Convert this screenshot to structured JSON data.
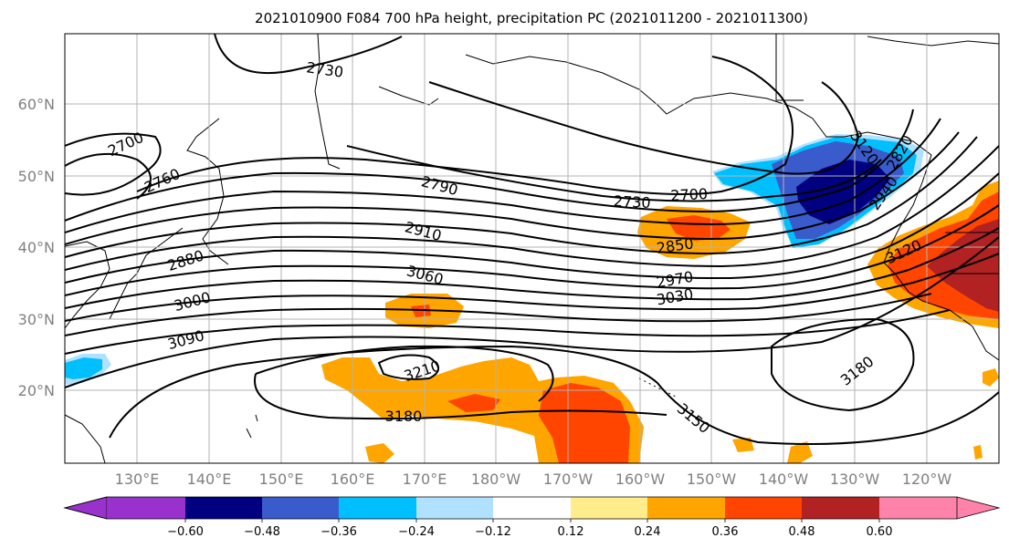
{
  "title": "2021010900 F084 700 hPa height, precipitation PC (2021011200 - 2021011300)",
  "lat_labels": [
    "60°N",
    "50°N",
    "40°N",
    "30°N",
    "20°N"
  ],
  "lon_labels": [
    "130°E",
    "140°E",
    "150°E",
    "160°E",
    "170°E",
    "180°W",
    "170°W",
    "160°W",
    "150°W",
    "140°W",
    "130°W",
    "120°W"
  ],
  "contour_labels": [
    "2730",
    "2700",
    "2760",
    "2790",
    "2730",
    "2700",
    "2910",
    "2880",
    "2850",
    "3060",
    "2970",
    "3030",
    "3000",
    "3090",
    "3120",
    "3210",
    "3180",
    "3150",
    "3180",
    "3120",
    "2820",
    "2940"
  ],
  "colorbar": {
    "ticks": [
      "−0.60",
      "−0.48",
      "−0.36",
      "−0.24",
      "−0.12",
      "0.12",
      "0.24",
      "0.36",
      "0.48",
      "0.60"
    ],
    "colors": [
      "#9932cc",
      "#000080",
      "#3a5bcc",
      "#00bfff",
      "#b0e2ff",
      "#ffffff",
      "#ffec8b",
      "#ffa500",
      "#ff4500",
      "#b22222",
      "#ff82ab"
    ]
  }
}
